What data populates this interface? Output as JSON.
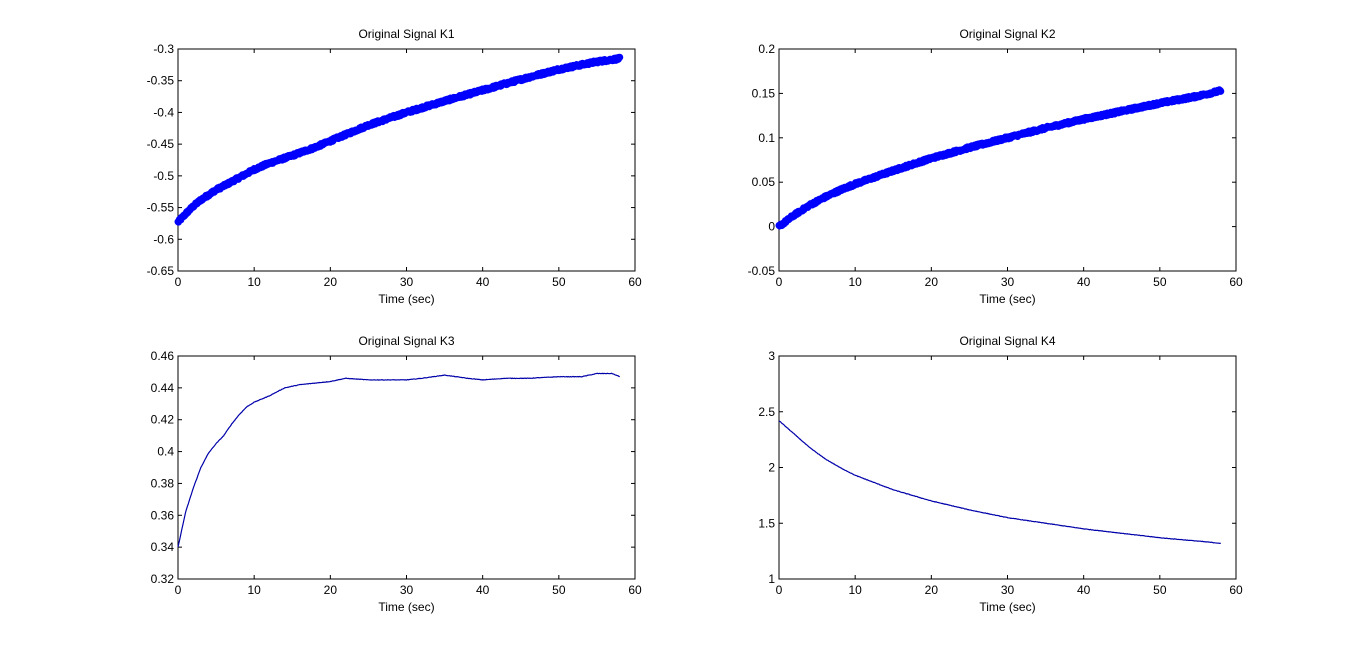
{
  "chart_data": [
    {
      "type": "line",
      "title": "Original Signal K1",
      "xlabel": "Time (sec)",
      "ylabel": "",
      "xlim": [
        0,
        60
      ],
      "ylim": [
        -0.65,
        -0.3
      ],
      "xticks": [
        0,
        10,
        20,
        30,
        40,
        50,
        60
      ],
      "xtick_labels": [
        "0",
        "10",
        "20",
        "30",
        "40",
        "50",
        "60"
      ],
      "yticks": [
        -0.65,
        -0.6,
        -0.55,
        -0.5,
        -0.45,
        -0.4,
        -0.35,
        -0.3
      ],
      "ytick_labels": [
        "-0.65",
        "-0.6",
        "-0.55",
        "-0.5",
        "-0.45",
        "-0.4",
        "-0.35",
        "-0.3"
      ],
      "grid": false,
      "line_style": "thick",
      "color": "#0000ff",
      "series": [
        {
          "name": "K1",
          "x": [
            0,
            1,
            2,
            3,
            4,
            5,
            6,
            8,
            10,
            12,
            15,
            18,
            20,
            25,
            30,
            35,
            40,
            45,
            50,
            55,
            58
          ],
          "y": [
            -0.573,
            -0.56,
            -0.548,
            -0.538,
            -0.53,
            -0.522,
            -0.516,
            -0.503,
            -0.49,
            -0.48,
            -0.468,
            -0.455,
            -0.445,
            -0.42,
            -0.4,
            -0.382,
            -0.365,
            -0.348,
            -0.332,
            -0.32,
            -0.315
          ]
        }
      ]
    },
    {
      "type": "line",
      "title": "Original Signal K2",
      "xlabel": "Time (sec)",
      "ylabel": "",
      "xlim": [
        0,
        60
      ],
      "ylim": [
        -0.05,
        0.2
      ],
      "xticks": [
        0,
        10,
        20,
        30,
        40,
        50,
        60
      ],
      "xtick_labels": [
        "0",
        "10",
        "20",
        "30",
        "40",
        "50",
        "60"
      ],
      "yticks": [
        -0.05,
        0,
        0.05,
        0.1,
        0.15,
        0.2
      ],
      "ytick_labels": [
        "-0.05",
        "0",
        "0.05",
        "0.1",
        "0.15",
        "0.2"
      ],
      "grid": false,
      "line_style": "thick",
      "color": "#0000ff",
      "series": [
        {
          "name": "K2",
          "x": [
            0,
            2,
            4,
            6,
            8,
            10,
            15,
            20,
            25,
            30,
            35,
            40,
            45,
            50,
            55,
            58
          ],
          "y": [
            0.0,
            0.013,
            0.024,
            0.033,
            0.041,
            0.048,
            0.063,
            0.077,
            0.089,
            0.1,
            0.111,
            0.121,
            0.13,
            0.139,
            0.147,
            0.153
          ]
        }
      ]
    },
    {
      "type": "line",
      "title": "Original Signal K3",
      "xlabel": "Time (sec)",
      "ylabel": "",
      "xlim": [
        0,
        60
      ],
      "ylim": [
        0.32,
        0.46
      ],
      "xticks": [
        0,
        10,
        20,
        30,
        40,
        50,
        60
      ],
      "xtick_labels": [
        "0",
        "10",
        "20",
        "30",
        "40",
        "50",
        "60"
      ],
      "yticks": [
        0.32,
        0.34,
        0.36,
        0.38,
        0.4,
        0.42,
        0.44,
        0.46
      ],
      "ytick_labels": [
        "0.32",
        "0.34",
        "0.36",
        "0.38",
        "0.4",
        "0.42",
        "0.44",
        "0.46"
      ],
      "grid": false,
      "line_style": "thin",
      "color": "#0000aa",
      "series": [
        {
          "name": "K3",
          "x": [
            0,
            1,
            2,
            3,
            4,
            5,
            6,
            7,
            8,
            9,
            10,
            12,
            14,
            16,
            18,
            20,
            22,
            25,
            28,
            30,
            32,
            35,
            38,
            40,
            43,
            46,
            50,
            53,
            55,
            57,
            58
          ],
          "y": [
            0.34,
            0.362,
            0.377,
            0.39,
            0.399,
            0.405,
            0.41,
            0.417,
            0.423,
            0.428,
            0.431,
            0.435,
            0.44,
            0.442,
            0.443,
            0.444,
            0.446,
            0.445,
            0.445,
            0.445,
            0.446,
            0.448,
            0.446,
            0.445,
            0.446,
            0.446,
            0.447,
            0.447,
            0.449,
            0.449,
            0.447
          ]
        }
      ]
    },
    {
      "type": "line",
      "title": "Original Signal K4",
      "xlabel": "Time (sec)",
      "ylabel": "",
      "xlim": [
        0,
        60
      ],
      "ylim": [
        1,
        3
      ],
      "xticks": [
        0,
        10,
        20,
        30,
        40,
        50,
        60
      ],
      "xtick_labels": [
        "0",
        "10",
        "20",
        "30",
        "40",
        "50",
        "60"
      ],
      "yticks": [
        1,
        1.5,
        2,
        2.5,
        3
      ],
      "ytick_labels": [
        "1",
        "1.5",
        "2",
        "2.5",
        "3"
      ],
      "grid": false,
      "line_style": "thin",
      "color": "#0000aa",
      "series": [
        {
          "name": "K4",
          "x": [
            0,
            2,
            4,
            6,
            8,
            10,
            15,
            20,
            25,
            30,
            35,
            40,
            45,
            50,
            55,
            58
          ],
          "y": [
            2.42,
            2.3,
            2.18,
            2.08,
            2.0,
            1.93,
            1.8,
            1.7,
            1.62,
            1.55,
            1.5,
            1.45,
            1.41,
            1.37,
            1.34,
            1.32
          ]
        }
      ]
    }
  ]
}
